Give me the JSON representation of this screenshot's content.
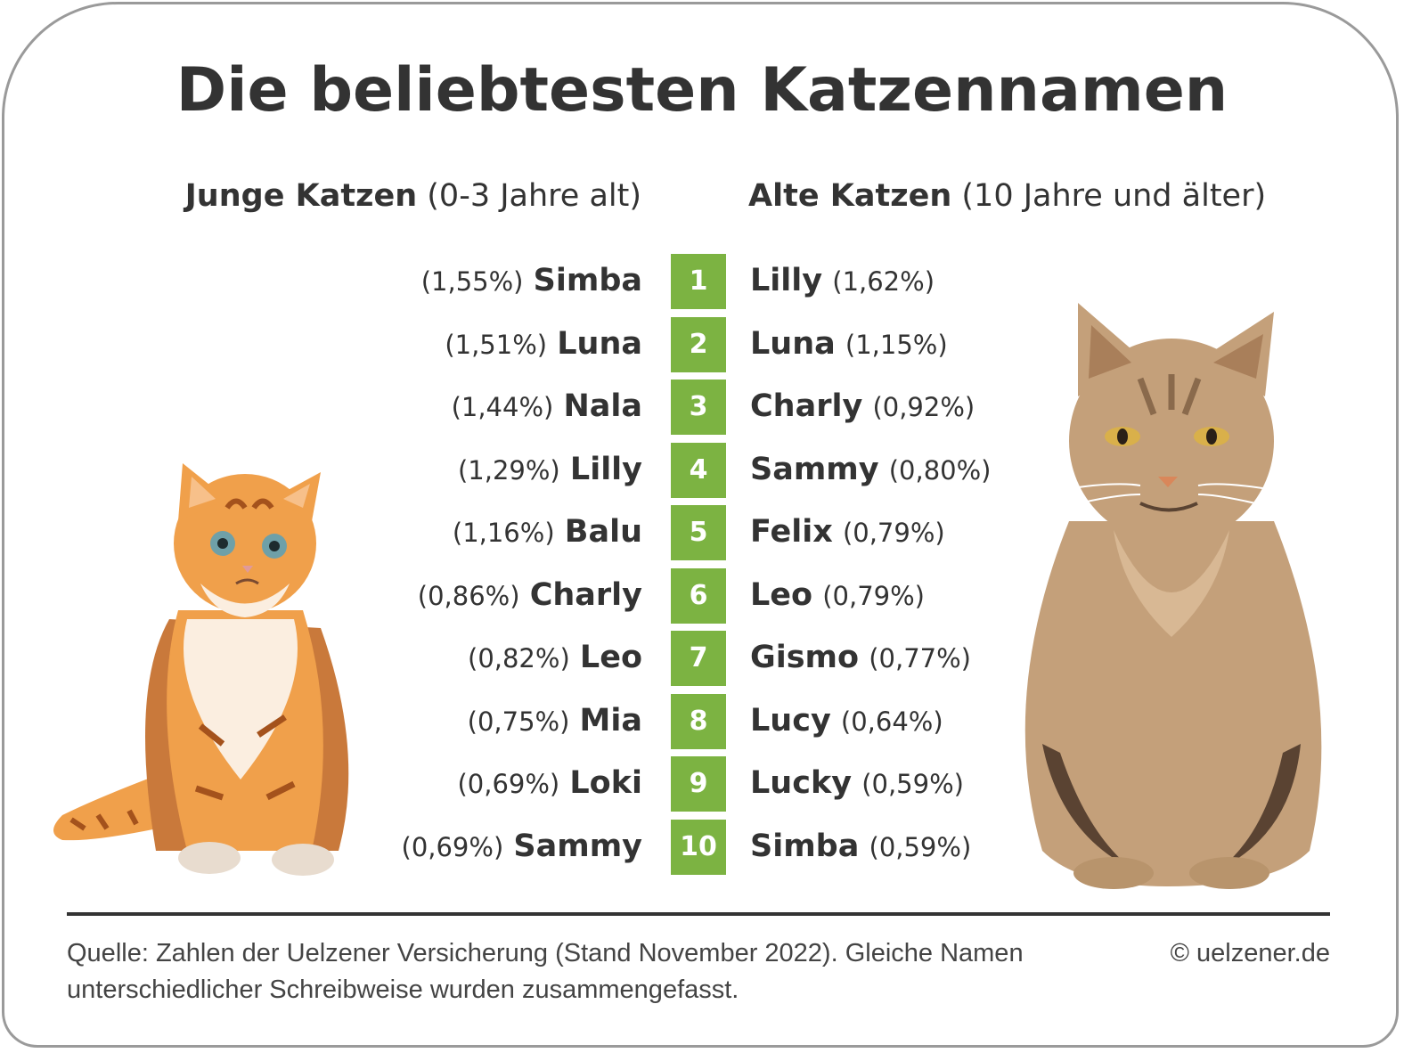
{
  "title": "Die beliebtesten Katzennamen",
  "chart_data": {
    "type": "table",
    "title": "Die beliebtesten Katzennamen",
    "ranks": [
      "1",
      "2",
      "3",
      "4",
      "5",
      "6",
      "7",
      "8",
      "9",
      "10"
    ],
    "series": [
      {
        "name_bold": "Junge Katzen",
        "name_light": "(0-3 Jahre alt)",
        "entries": [
          {
            "name": "Simba",
            "pct": "(1,55%)"
          },
          {
            "name": "Luna",
            "pct": "(1,51%)"
          },
          {
            "name": "Nala",
            "pct": "(1,44%)"
          },
          {
            "name": "Lilly",
            "pct": "(1,29%)"
          },
          {
            "name": "Balu",
            "pct": "(1,16%)"
          },
          {
            "name": "Charly",
            "pct": "(0,86%)"
          },
          {
            "name": "Leo",
            "pct": "(0,82%)"
          },
          {
            "name": "Mia",
            "pct": "(0,75%)"
          },
          {
            "name": "Loki",
            "pct": "(0,69%)"
          },
          {
            "name": "Sammy",
            "pct": "(0,69%)"
          }
        ]
      },
      {
        "name_bold": "Alte Katzen",
        "name_light": "(10 Jahre und älter)",
        "entries": [
          {
            "name": "Lilly",
            "pct": "(1,62%)"
          },
          {
            "name": "Luna",
            "pct": "(1,15%)"
          },
          {
            "name": "Charly",
            "pct": "(0,92%)"
          },
          {
            "name": "Sammy",
            "pct": "(0,80%)"
          },
          {
            "name": "Felix",
            "pct": "(0,79%)"
          },
          {
            "name": "Leo",
            "pct": "(0,79%)"
          },
          {
            "name": "Gismo",
            "pct": "(0,77%)"
          },
          {
            "name": "Lucy",
            "pct": "(0,64%)"
          },
          {
            "name": "Lucky",
            "pct": "(0,59%)"
          },
          {
            "name": "Simba",
            "pct": "(0,59%)"
          }
        ]
      }
    ]
  },
  "footer": {
    "source": "Quelle: Zahlen der Uelzener Versicherung (Stand November 2022). Gleiche Namen unterschiedlicher Schreibweise wurden zusammengefasst.",
    "copyright": "© uelzener.de"
  },
  "colors": {
    "accent_green": "#7cb342",
    "text": "#333333",
    "young_cat": "#f0a04b",
    "old_cat": "#c4a07a"
  },
  "icons": [
    "young-cat-illustration",
    "old-cat-illustration"
  ]
}
